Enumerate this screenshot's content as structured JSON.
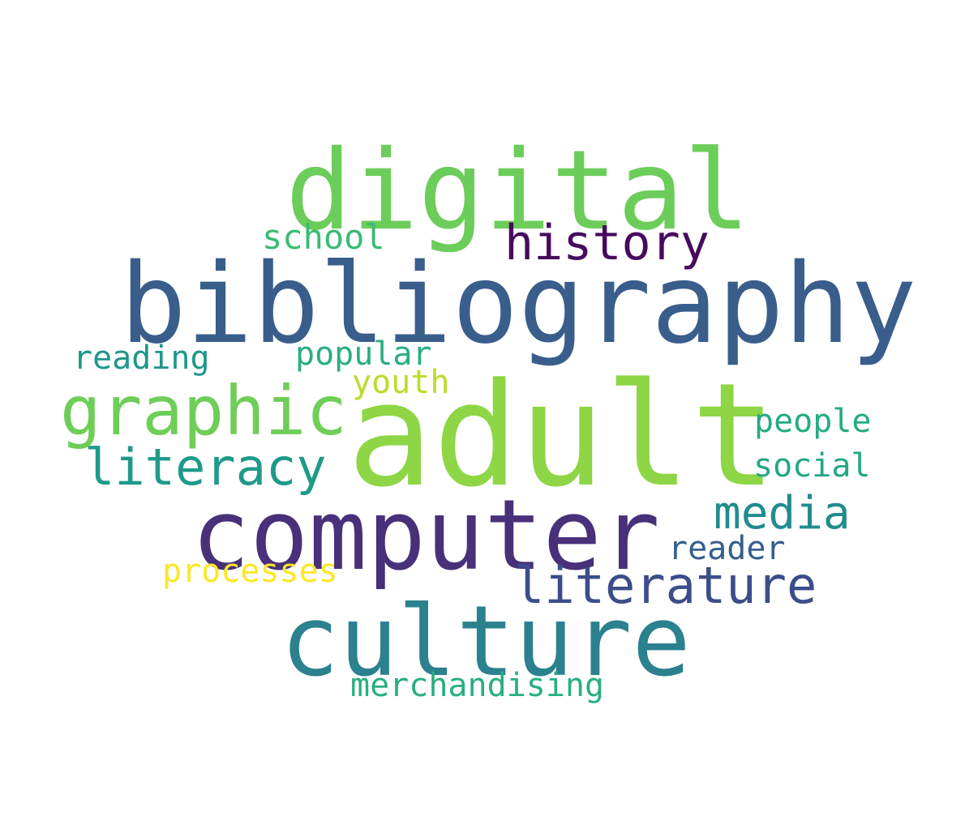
{
  "words": {
    "digital": {
      "text": "digital",
      "color": "#6ccd5a"
    },
    "bibliography": {
      "text": "bibliography",
      "color": "#3a5e8c"
    },
    "adult": {
      "text": "adult",
      "color": "#8ed645"
    },
    "computer": {
      "text": "computer",
      "color": "#48307a"
    },
    "culture": {
      "text": "culture",
      "color": "#2b818e"
    },
    "graphic": {
      "text": "graphic",
      "color": "#6ece58"
    },
    "history": {
      "text": "history",
      "color": "#460b5e"
    },
    "literacy": {
      "text": "literacy",
      "color": "#1f9a8a"
    },
    "literature": {
      "text": "literature",
      "color": "#3b4d8a"
    },
    "media": {
      "text": "media",
      "color": "#228c8d"
    },
    "school": {
      "text": "school",
      "color": "#3bbb75"
    },
    "reading": {
      "text": "reading",
      "color": "#1f968b"
    },
    "popular": {
      "text": "popular",
      "color": "#2aae80"
    },
    "youth": {
      "text": "youth",
      "color": "#b8de29"
    },
    "people": {
      "text": "people",
      "color": "#25ab82"
    },
    "social": {
      "text": "social",
      "color": "#22a785"
    },
    "reader": {
      "text": "reader",
      "color": "#355f8d"
    },
    "processes": {
      "text": "processes",
      "color": "#fde725"
    },
    "merchandising": {
      "text": "merchandising",
      "color": "#29af7f"
    }
  }
}
